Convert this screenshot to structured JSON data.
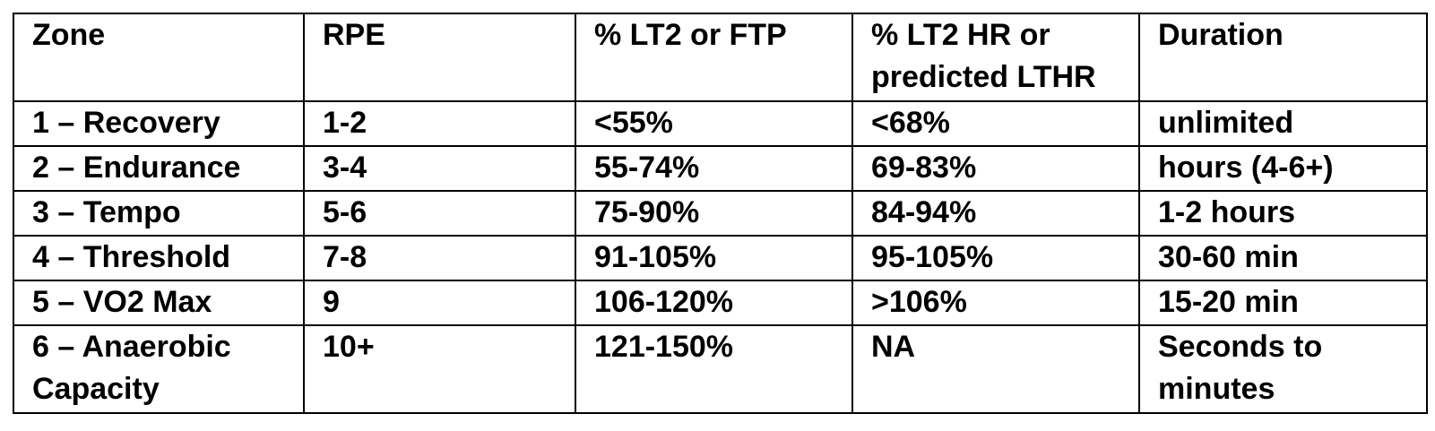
{
  "table": {
    "headers": [
      "Zone",
      "RPE",
      "% LT2 or FTP",
      "% LT2 HR or predicted LTHR",
      "Duration"
    ],
    "rows": [
      [
        "1 – Recovery",
        "1-2",
        "<55%",
        "<68%",
        "unlimited"
      ],
      [
        "2 – Endurance",
        "3-4",
        "55-74%",
        "69-83%",
        "hours (4-6+)"
      ],
      [
        "3 – Tempo",
        "5-6",
        "75-90%",
        "84-94%",
        "1-2 hours"
      ],
      [
        "4 – Threshold",
        "7-8",
        "91-105%",
        "95-105%",
        "30-60 min"
      ],
      [
        "5 – VO2 Max",
        "9",
        "106-120%",
        ">106%",
        "15-20 min"
      ],
      [
        "6 – Anaerobic Capacity",
        "10+",
        "121-150%",
        "NA",
        "Seconds to minutes"
      ]
    ]
  }
}
